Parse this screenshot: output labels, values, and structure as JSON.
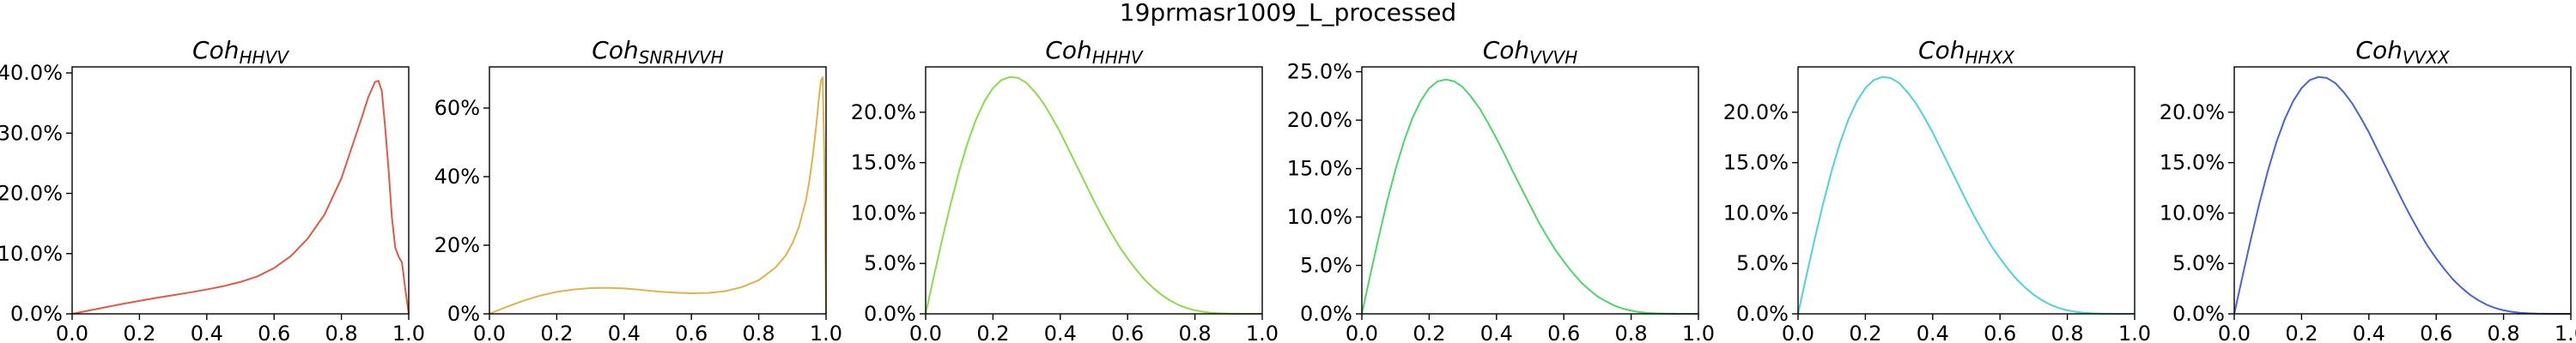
{
  "figure_title": "19prmasr1009_L_processed",
  "chart_data": [
    {
      "type": "line",
      "title": "Coh",
      "title_sub": "HHVV",
      "color": "#e05a47",
      "x": [
        0.0,
        0.05,
        0.1,
        0.15,
        0.2,
        0.25,
        0.3,
        0.35,
        0.4,
        0.45,
        0.5,
        0.55,
        0.6,
        0.65,
        0.7,
        0.75,
        0.8,
        0.83,
        0.86,
        0.88,
        0.9,
        0.91,
        0.92,
        0.93,
        0.94,
        0.95,
        0.96,
        0.97,
        0.975,
        0.98,
        0.99,
        1.0
      ],
      "y": [
        0.0,
        0.55,
        1.1,
        1.65,
        2.15,
        2.65,
        3.1,
        3.55,
        4.05,
        4.6,
        5.3,
        6.2,
        7.6,
        9.6,
        12.5,
        16.5,
        22.5,
        27.5,
        32.5,
        36.0,
        38.5,
        38.7,
        37.0,
        31.0,
        24.0,
        16.0,
        11.0,
        9.5,
        9.0,
        8.5,
        4.0,
        0.0
      ],
      "xlim": [
        0,
        1
      ],
      "ylim": [
        0,
        41
      ],
      "xticks": [
        0.0,
        0.2,
        0.4,
        0.6,
        0.8,
        1.0
      ],
      "xtick_labels": [
        "0.0",
        "0.2",
        "0.4",
        "0.6",
        "0.8",
        "1.0"
      ],
      "yticks": [
        0,
        10,
        20,
        30,
        40
      ],
      "ytick_labels": [
        "0.0%",
        "10.0%",
        "20.0%",
        "30.0%",
        "40.0%"
      ]
    },
    {
      "type": "line",
      "title": "Coh",
      "title_sub": "SNRHVVH",
      "color": "#e3b24d",
      "x": [
        0.0,
        0.05,
        0.1,
        0.15,
        0.2,
        0.25,
        0.3,
        0.35,
        0.4,
        0.45,
        0.5,
        0.55,
        0.6,
        0.65,
        0.7,
        0.75,
        0.8,
        0.85,
        0.88,
        0.9,
        0.92,
        0.94,
        0.95,
        0.96,
        0.97,
        0.975,
        0.98,
        0.985,
        0.99,
        0.995,
        1.0
      ],
      "y": [
        0.0,
        2.0,
        3.8,
        5.3,
        6.4,
        7.1,
        7.5,
        7.6,
        7.4,
        7.0,
        6.5,
        6.2,
        6.0,
        6.1,
        6.6,
        7.8,
        9.8,
        13.5,
        17.0,
        20.5,
        25.5,
        33.0,
        38.5,
        45.5,
        54.0,
        59.0,
        64.0,
        68.0,
        69.0,
        45.0,
        0.0
      ],
      "xlim": [
        0,
        1
      ],
      "ylim": [
        0,
        72
      ],
      "xticks": [
        0.0,
        0.2,
        0.4,
        0.6,
        0.8,
        1.0
      ],
      "xtick_labels": [
        "0.0",
        "0.2",
        "0.4",
        "0.6",
        "0.8",
        "1.0"
      ],
      "yticks": [
        0,
        20,
        40,
        60
      ],
      "ytick_labels": [
        "0%",
        "20%",
        "40%",
        "60%"
      ]
    },
    {
      "type": "line",
      "title": "Coh",
      "title_sub": "HHHV",
      "color": "#8edb4a",
      "x": [
        0.0,
        0.025,
        0.05,
        0.075,
        0.1,
        0.125,
        0.15,
        0.175,
        0.2,
        0.225,
        0.25,
        0.275,
        0.3,
        0.325,
        0.35,
        0.375,
        0.4,
        0.425,
        0.45,
        0.475,
        0.5,
        0.525,
        0.55,
        0.575,
        0.6,
        0.625,
        0.65,
        0.675,
        0.7,
        0.725,
        0.75,
        0.775,
        0.8,
        0.825,
        0.85,
        0.875,
        0.9,
        0.925,
        0.95,
        0.975,
        1.0
      ],
      "y": [
        0.0,
        3.8,
        7.5,
        11.0,
        14.2,
        17.0,
        19.3,
        21.1,
        22.4,
        23.2,
        23.5,
        23.4,
        22.9,
        22.0,
        20.9,
        19.5,
        18.0,
        16.3,
        14.6,
        12.9,
        11.2,
        9.6,
        8.1,
        6.7,
        5.5,
        4.4,
        3.4,
        2.6,
        1.9,
        1.35,
        0.9,
        0.58,
        0.35,
        0.2,
        0.1,
        0.05,
        0.02,
        0.01,
        0.0,
        0.0,
        0.0
      ],
      "xlim": [
        0,
        1
      ],
      "ylim": [
        0,
        24.5
      ],
      "xticks": [
        0.0,
        0.2,
        0.4,
        0.6,
        0.8,
        1.0
      ],
      "xtick_labels": [
        "0.0",
        "0.2",
        "0.4",
        "0.6",
        "0.8",
        "1.0"
      ],
      "yticks": [
        0,
        5,
        10,
        15,
        20
      ],
      "ytick_labels": [
        "0.0%",
        "5.0%",
        "10.0%",
        "15.0%",
        "20.0%"
      ]
    },
    {
      "type": "line",
      "title": "Coh",
      "title_sub": "VVVH",
      "color": "#4dd66e",
      "x": [
        0.0,
        0.025,
        0.05,
        0.075,
        0.1,
        0.125,
        0.15,
        0.175,
        0.2,
        0.225,
        0.25,
        0.275,
        0.3,
        0.325,
        0.35,
        0.375,
        0.4,
        0.425,
        0.45,
        0.475,
        0.5,
        0.525,
        0.55,
        0.575,
        0.6,
        0.625,
        0.65,
        0.675,
        0.7,
        0.725,
        0.75,
        0.775,
        0.8,
        0.825,
        0.85,
        0.875,
        0.9,
        0.925,
        0.95,
        0.975,
        1.0
      ],
      "y": [
        0.0,
        4.0,
        7.9,
        11.6,
        14.9,
        17.8,
        20.2,
        22.0,
        23.3,
        24.0,
        24.2,
        24.0,
        23.4,
        22.4,
        21.2,
        19.7,
        18.1,
        16.4,
        14.6,
        12.9,
        11.2,
        9.5,
        8.0,
        6.6,
        5.4,
        4.3,
        3.3,
        2.5,
        1.8,
        1.3,
        0.85,
        0.55,
        0.33,
        0.18,
        0.09,
        0.04,
        0.02,
        0.01,
        0.0,
        0.0,
        0.0
      ],
      "xlim": [
        0,
        1
      ],
      "ylim": [
        0,
        25.5
      ],
      "xticks": [
        0.0,
        0.2,
        0.4,
        0.6,
        0.8,
        1.0
      ],
      "xtick_labels": [
        "0.0",
        "0.2",
        "0.4",
        "0.6",
        "0.8",
        "1.0"
      ],
      "yticks": [
        0,
        5,
        10,
        15,
        20,
        25
      ],
      "ytick_labels": [
        "0.0%",
        "5.0%",
        "10.0%",
        "15.0%",
        "20.0%",
        "25.0%"
      ]
    },
    {
      "type": "line",
      "title": "Coh",
      "title_sub": "HHXX",
      "color": "#4dd4d9",
      "x": [
        0.0,
        0.025,
        0.05,
        0.075,
        0.1,
        0.125,
        0.15,
        0.175,
        0.2,
        0.225,
        0.25,
        0.275,
        0.3,
        0.325,
        0.35,
        0.375,
        0.4,
        0.425,
        0.45,
        0.475,
        0.5,
        0.525,
        0.55,
        0.575,
        0.6,
        0.625,
        0.65,
        0.675,
        0.7,
        0.725,
        0.75,
        0.775,
        0.8,
        0.825,
        0.85,
        0.875,
        0.9,
        0.925,
        0.95,
        0.975,
        1.0
      ],
      "y": [
        0.0,
        3.8,
        7.5,
        11.0,
        14.2,
        17.0,
        19.3,
        21.1,
        22.4,
        23.2,
        23.5,
        23.4,
        22.9,
        22.0,
        20.9,
        19.5,
        18.0,
        16.3,
        14.6,
        12.9,
        11.2,
        9.6,
        8.1,
        6.7,
        5.5,
        4.4,
        3.4,
        2.6,
        1.9,
        1.35,
        0.9,
        0.58,
        0.35,
        0.2,
        0.1,
        0.05,
        0.02,
        0.01,
        0.0,
        0.0,
        0.0
      ],
      "xlim": [
        0,
        1
      ],
      "ylim": [
        0,
        24.5
      ],
      "xticks": [
        0.0,
        0.2,
        0.4,
        0.6,
        0.8,
        1.0
      ],
      "xtick_labels": [
        "0.0",
        "0.2",
        "0.4",
        "0.6",
        "0.8",
        "1.0"
      ],
      "yticks": [
        0,
        5,
        10,
        15,
        20
      ],
      "ytick_labels": [
        "0.0%",
        "5.0%",
        "10.0%",
        "15.0%",
        "20.0%"
      ]
    },
    {
      "type": "line",
      "title": "Coh",
      "title_sub": "VVXX",
      "color": "#4a63d6",
      "x": [
        0.0,
        0.025,
        0.05,
        0.075,
        0.1,
        0.125,
        0.15,
        0.175,
        0.2,
        0.225,
        0.25,
        0.275,
        0.3,
        0.325,
        0.35,
        0.375,
        0.4,
        0.425,
        0.45,
        0.475,
        0.5,
        0.525,
        0.55,
        0.575,
        0.6,
        0.625,
        0.65,
        0.675,
        0.7,
        0.725,
        0.75,
        0.775,
        0.8,
        0.825,
        0.85,
        0.875,
        0.9,
        0.925,
        0.95,
        0.975,
        1.0
      ],
      "y": [
        0.0,
        3.8,
        7.5,
        11.0,
        14.2,
        17.0,
        19.3,
        21.1,
        22.4,
        23.2,
        23.5,
        23.4,
        22.9,
        22.0,
        20.9,
        19.5,
        18.0,
        16.3,
        14.6,
        12.9,
        11.2,
        9.6,
        8.1,
        6.7,
        5.5,
        4.4,
        3.4,
        2.6,
        1.9,
        1.35,
        0.9,
        0.58,
        0.35,
        0.2,
        0.1,
        0.05,
        0.02,
        0.01,
        0.0,
        0.0,
        0.0
      ],
      "xlim": [
        0,
        1
      ],
      "ylim": [
        0,
        24.5
      ],
      "xticks": [
        0.0,
        0.2,
        0.4,
        0.6,
        0.8,
        1.0
      ],
      "xtick_labels": [
        "0.0",
        "0.2",
        "0.4",
        "0.6",
        "0.8",
        "1.0"
      ],
      "yticks": [
        0,
        5,
        10,
        15,
        20
      ],
      "ytick_labels": [
        "0.0%",
        "5.0%",
        "10.0%",
        "15.0%",
        "20.0%"
      ]
    }
  ]
}
